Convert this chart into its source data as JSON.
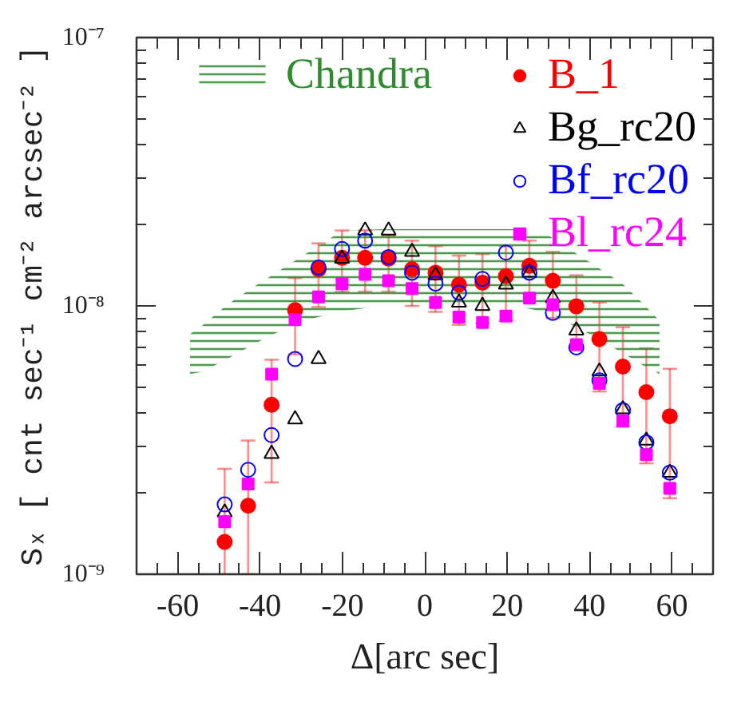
{
  "chart_data": {
    "type": "scatter",
    "xlabel": "Δ[arc sec]",
    "ylabel": "Sₓ [ cnt sec⁻¹ cm⁻² arcsec⁻² ]",
    "log": "y",
    "xlim": [
      -70,
      70
    ],
    "ylim": [
      1e-09,
      1e-07
    ],
    "xticks": [
      -60,
      -40,
      -20,
      0,
      20,
      40,
      60,
      {
        "value": -65,
        "label": null
      },
      {
        "value": -55,
        "label": null
      },
      {
        "value": -50,
        "label": null
      },
      {
        "value": -45,
        "label": null
      },
      {
        "value": -35,
        "label": null
      },
      {
        "value": -30,
        "label": null
      },
      {
        "value": -25,
        "label": null
      },
      {
        "value": -15,
        "label": null
      },
      {
        "value": -10,
        "label": null
      },
      {
        "value": -5,
        "label": null
      },
      {
        "value": 5,
        "label": null
      },
      {
        "value": 10,
        "label": null
      },
      {
        "value": 15,
        "label": null
      },
      {
        "value": 25,
        "label": null
      },
      {
        "value": 30,
        "label": null
      },
      {
        "value": 35,
        "label": null
      },
      {
        "value": 45,
        "label": null
      },
      {
        "value": 50,
        "label": null
      },
      {
        "value": 55,
        "label": null
      },
      {
        "value": 65,
        "label": null
      }
    ],
    "yticks": [
      {
        "value": 1e-09,
        "label": "10⁻⁹"
      },
      {
        "value": 1e-08,
        "label": "10⁻⁸"
      },
      {
        "value": 1e-07,
        "label": "10⁻⁷"
      },
      {
        "value": 2e-09,
        "label": null
      },
      {
        "value": 3e-09,
        "label": null
      },
      {
        "value": 4e-09,
        "label": null
      },
      {
        "value": 5e-09,
        "label": null
      },
      {
        "value": 6e-09,
        "label": null
      },
      {
        "value": 7e-09,
        "label": null
      },
      {
        "value": 8e-09,
        "label": null
      },
      {
        "value": 9e-09,
        "label": null
      },
      {
        "value": 2e-08,
        "label": null
      },
      {
        "value": 3e-08,
        "label": null
      },
      {
        "value": 4e-08,
        "label": null
      },
      {
        "value": 5e-08,
        "label": null
      },
      {
        "value": 6e-08,
        "label": null
      },
      {
        "value": 7e-08,
        "label": null
      },
      {
        "value": 8e-08,
        "label": null
      },
      {
        "value": 9e-08,
        "label": null
      }
    ],
    "legend": "top",
    "x": [
      -48.6,
      -42.9,
      -37.2,
      -31.5,
      -25.8,
      -20.1,
      -14.5,
      -8.8,
      -3.1,
      2.6,
      8.3,
      14.0,
      19.7,
      25.4,
      31.1,
      36.8,
      42.4,
      48.1,
      53.8,
      59.5
    ],
    "series": [
      {
        "name": "Chandra",
        "type": "area",
        "color": "#2e8b2e",
        "x": [
          -57,
          -54,
          -48,
          -41,
          -31,
          -20,
          -10,
          0,
          10,
          22,
          30,
          39,
          48,
          53,
          57
        ],
        "values": [
          null,
          null,
          null,
          null,
          null,
          null,
          null,
          null,
          null,
          null,
          null,
          null,
          null,
          null,
          null
        ],
        "lower": [
          5.58e-09,
          5.68e-09,
          6.34e-09,
          7.27e-09,
          8.68e-09,
          9.56e-09,
          1e-08,
          1.01e-08,
          1.01e-08,
          1e-08,
          9.43e-09,
          8e-09,
          6.69e-09,
          6e-09,
          5.58e-09
        ],
        "upper": [
          7.86e-09,
          8.45e-09,
          1.01e-08,
          1.19e-08,
          1.49e-08,
          1.91e-08,
          1.93e-08,
          1.93e-08,
          1.93e-08,
          1.93e-08,
          1.83e-08,
          1.49e-08,
          1.21e-08,
          1.02e-08,
          8.8e-09
        ]
      },
      {
        "name": "B_1",
        "color": "#ff0000",
        "marker": "circle",
        "values": [
          1.32e-09,
          1.8e-09,
          4.28e-09,
          9.65e-09,
          1.37e-08,
          1.51e-08,
          1.51e-08,
          1.5e-08,
          1.37e-08,
          1.33e-08,
          1.2e-08,
          1.22e-08,
          1.29e-08,
          1.41e-08,
          1.24e-08,
          9.96e-09,
          7.53e-09,
          5.94e-09,
          4.77e-09,
          3.88e-09
        ],
        "errors": [
          [
            1e-09,
            2.47e-09
          ],
          [
            1e-09,
            3.15e-09
          ],
          [
            2.2e-09,
            6.3e-09
          ],
          [
            6.6e-09,
            1.27e-08
          ],
          [
            9.9e-09,
            1.71e-08
          ],
          [
            1.13e-08,
            1.91e-08
          ],
          [
            1.13e-08,
            1.91e-08
          ],
          [
            1.13e-08,
            1.83e-08
          ],
          [
            1e-08,
            1.75e-08
          ],
          [
            9.5e-09,
            1.67e-08
          ],
          [
            8.5e-09,
            1.54e-08
          ],
          [
            8.6e-09,
            1.56e-08
          ],
          [
            8.8e-09,
            1.67e-08
          ],
          [
            1.11e-08,
            1.75e-08
          ],
          [
            9e-09,
            1.59e-08
          ],
          [
            6.9e-09,
            1.3e-08
          ],
          [
            4.8e-09,
            1.03e-08
          ],
          [
            3.55e-09,
            8.33e-09
          ],
          [
            2.59e-09,
            6.95e-09
          ],
          [
            1.92e-09,
            5.83e-09
          ]
        ]
      },
      {
        "name": "Bg_rc20",
        "color": "#000000",
        "marker": "triangle-open",
        "values": [
          1.7e-09,
          null,
          2.81e-09,
          3.78e-09,
          6.34e-09,
          1.5e-08,
          1.91e-08,
          1.91e-08,
          1.59e-08,
          1.3e-08,
          1.03e-08,
          1e-08,
          1.2e-08,
          1.33e-08,
          1.07e-08,
          8.1e-09,
          5.7e-09,
          4.12e-09,
          3.15e-09,
          2.39e-09
        ]
      },
      {
        "name": "Bf_rc20",
        "color": "#0000ff",
        "marker": "circle-open",
        "values": [
          1.82e-09,
          2.45e-09,
          3.3e-09,
          6.34e-09,
          1.39e-08,
          1.63e-08,
          1.75e-08,
          1.52e-08,
          1.33e-08,
          1.21e-08,
          1.12e-08,
          1.26e-08,
          1.58e-08,
          1.33e-08,
          9.42e-09,
          7e-09,
          5.28e-09,
          4.09e-09,
          3.1e-09,
          2.39e-09
        ]
      },
      {
        "name": "Bl_rc24",
        "color": "#ff00ff",
        "marker": "square",
        "values": [
          1.57e-09,
          2.17e-09,
          5.57e-09,
          8.89e-09,
          1.08e-08,
          1.21e-08,
          1.31e-08,
          1.24e-08,
          1.16e-08,
          1.03e-08,
          9.09e-09,
          8.68e-09,
          9.17e-09,
          1.07e-08,
          1.01e-08,
          7.17e-09,
          5.14e-09,
          3.73e-09,
          2.79e-09,
          2.09e-09
        ]
      }
    ]
  }
}
